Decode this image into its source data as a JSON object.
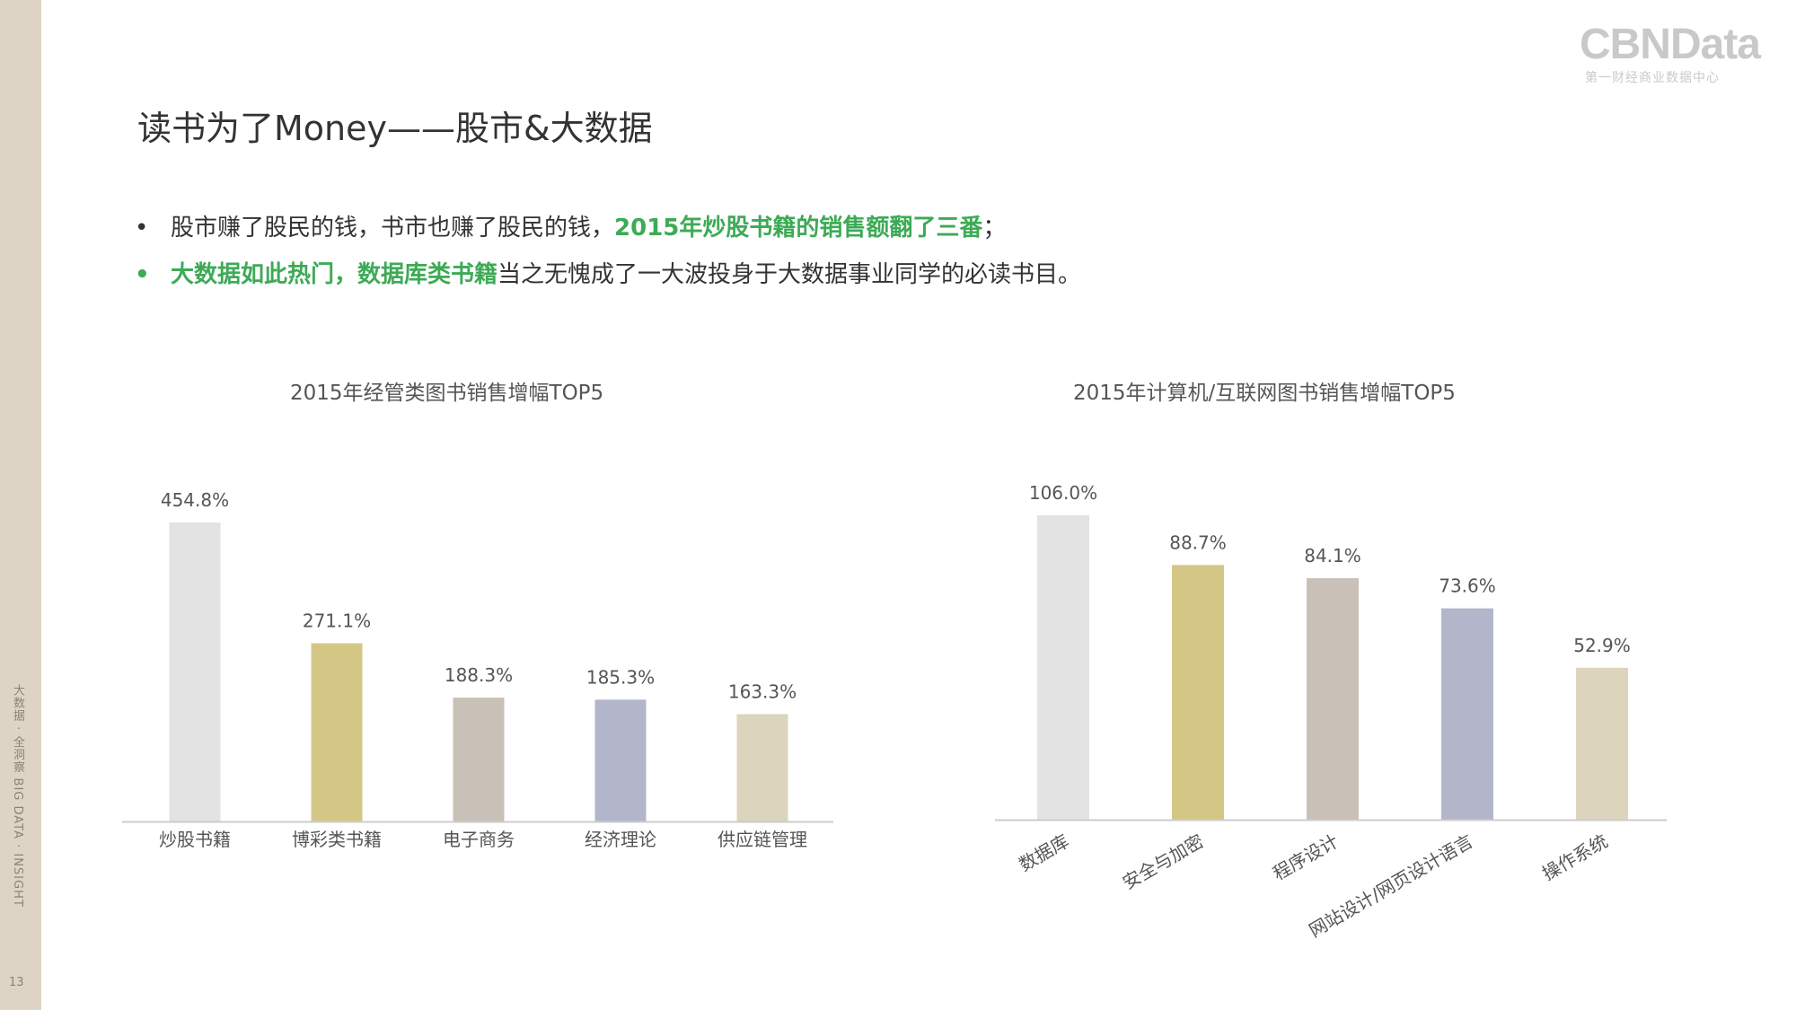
{
  "sidebar": {
    "vertical_text": "大数据 · 全洞察   BIG DATA · INSIGHT",
    "page_number": "13"
  },
  "logo": {
    "main": "CBNData",
    "sub": "第一财经商业数据中心"
  },
  "title": "读书为了Money——股市&大数据",
  "bullets": [
    {
      "dot": "•",
      "plain1": "股市赚了股民的钱，书市也赚了股民的钱，",
      "highlight": "2015年炒股书籍的销售额翻了三番",
      "plain2": "；"
    },
    {
      "dot": "•",
      "highlight": "大数据如此热门，数据库类书籍",
      "plain": "当之无愧成了一大波投身于大数据事业同学的必读书目。"
    }
  ],
  "colors": {
    "accent": "#3daa56",
    "sidebar": "#ddd4c5",
    "bars": [
      "#e3e3e3",
      "#d4c785",
      "#c9c0b7",
      "#b3b5ca",
      "#ddd4bd"
    ]
  },
  "chart_data": [
    {
      "type": "bar",
      "title": "2015年经管类图书销售增幅TOP5",
      "categories": [
        "炒股书籍",
        "博彩类书籍",
        "电子商务",
        "经济理论",
        "供应链管理"
      ],
      "values": [
        454.8,
        271.1,
        188.3,
        185.3,
        163.3
      ],
      "labels": [
        "454.8%",
        "271.1%",
        "188.3%",
        "185.3%",
        "163.3%"
      ],
      "ylim": [
        0,
        454.8
      ],
      "grid": false,
      "legend": "none"
    },
    {
      "type": "bar",
      "title": "2015年计算机/互联网图书销售增幅TOP5",
      "categories": [
        "数据库",
        "安全与加密",
        "程序设计",
        "网站设计/网页设计语言",
        "操作系统"
      ],
      "values": [
        106.0,
        88.7,
        84.1,
        73.6,
        52.9
      ],
      "labels": [
        "106.0%",
        "88.7%",
        "84.1%",
        "73.6%",
        "52.9%"
      ],
      "ylim": [
        0,
        106.0
      ],
      "grid": false,
      "legend": "none"
    }
  ]
}
